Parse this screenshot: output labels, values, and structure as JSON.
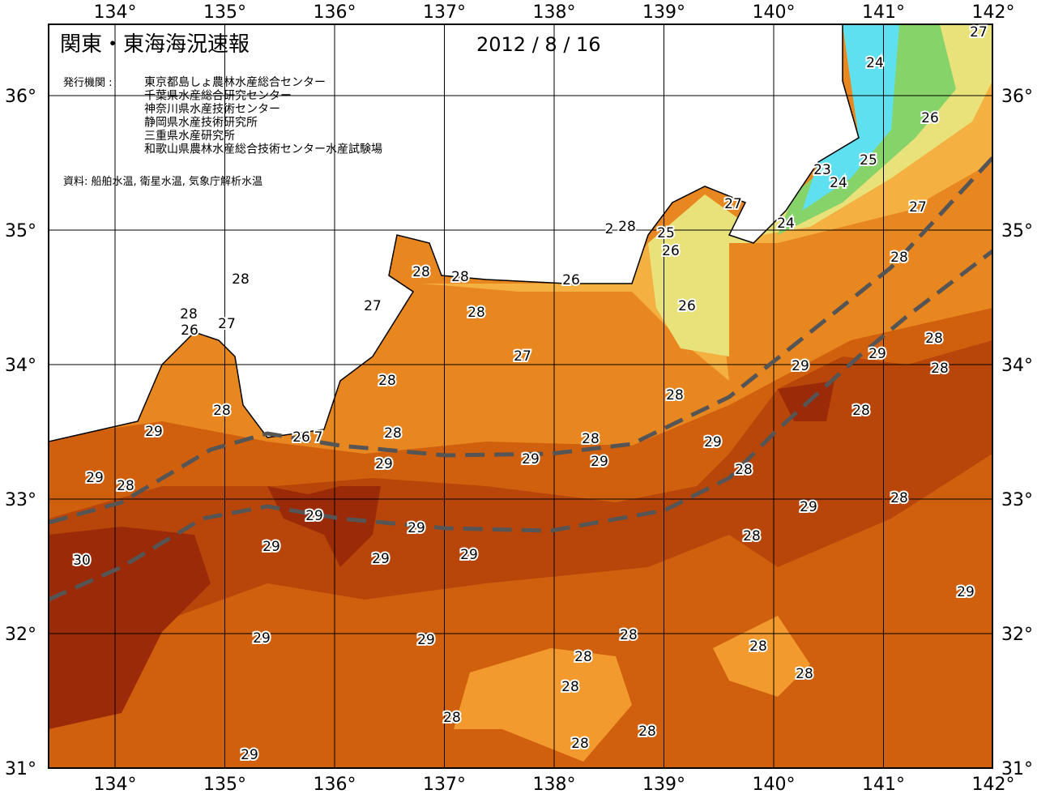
{
  "header": {
    "title": "関東・東海海況速報",
    "date": "2012 / 8 / 16"
  },
  "agencies": {
    "label": "発行機関 :",
    "items": [
      "東京都島しょ農林水産総合センター",
      "千葉県水産総合研究センター",
      "神奈川県水産技術センター",
      "静岡県水産技術研究所",
      "三重県水産研究所",
      "和歌山県農林水産総合技術センター水産試験場"
    ]
  },
  "source": "資料: 船舶水温, 衛星水温, 気象庁解析水温",
  "axes": {
    "longitude": [
      "134°",
      "135°",
      "136°",
      "137°",
      "138°",
      "139°",
      "140°",
      "141°",
      "142°"
    ],
    "latitude": [
      "36°",
      "35°",
      "34°",
      "33°",
      "32°",
      "31°"
    ]
  },
  "contour_labels": [
    27,
    24,
    26,
    25,
    23,
    24,
    27,
    24,
    27,
    25,
    2,
    28,
    26,
    28,
    28,
    28,
    28,
    26,
    27,
    26,
    28,
    28,
    26,
    27,
    28,
    27,
    29,
    29,
    28,
    28,
    28,
    28,
    28,
    29,
    28,
    26,
    7,
    28,
    29,
    29,
    29,
    29,
    28,
    29,
    28,
    28,
    29,
    29,
    29,
    28,
    29,
    30,
    29,
    29,
    29,
    28,
    29,
    29,
    28,
    28,
    28,
    28,
    28,
    28,
    28,
    29
  ]
}
